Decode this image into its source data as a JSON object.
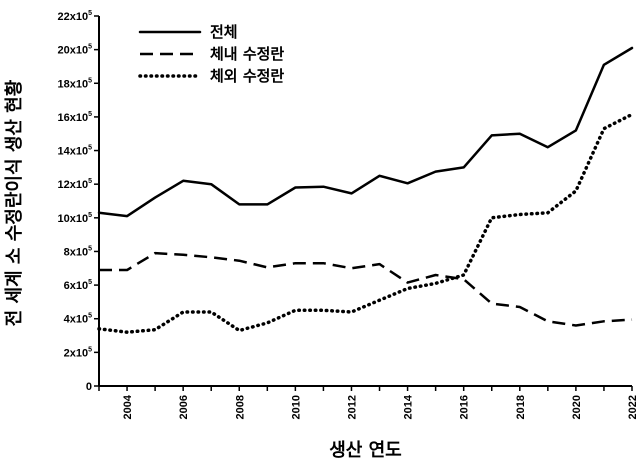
{
  "chart_data": {
    "type": "line",
    "xlabel": "생산 연도",
    "ylabel": "전 세계 소 수정란이식 생산 현황",
    "ylim": [
      0,
      2200000
    ],
    "yticks": [
      {
        "value": 0,
        "base": "0",
        "exp": ""
      },
      {
        "value": 200000,
        "base": "2x10",
        "exp": "5"
      },
      {
        "value": 400000,
        "base": "4x10",
        "exp": "5"
      },
      {
        "value": 600000,
        "base": "6x10",
        "exp": "5"
      },
      {
        "value": 800000,
        "base": "8x10",
        "exp": "5"
      },
      {
        "value": 1000000,
        "base": "10x10",
        "exp": "5"
      },
      {
        "value": 1200000,
        "base": "12x10",
        "exp": "5"
      },
      {
        "value": 1400000,
        "base": "14x10",
        "exp": "5"
      },
      {
        "value": 1600000,
        "base": "16x10",
        "exp": "5"
      },
      {
        "value": 1800000,
        "base": "18x10",
        "exp": "5"
      },
      {
        "value": 2000000,
        "base": "20x10",
        "exp": "5"
      },
      {
        "value": 2200000,
        "base": "22x10",
        "exp": "5"
      }
    ],
    "xticks": [
      "2004",
      "2006",
      "2008",
      "2010",
      "2012",
      "2014",
      "2016",
      "2018",
      "2020",
      "2022"
    ],
    "x": [
      2003,
      2004,
      2005,
      2006,
      2007,
      2008,
      2009,
      2010,
      2011,
      2012,
      2013,
      2014,
      2015,
      2016,
      2017,
      2018,
      2019,
      2020,
      2021,
      2022
    ],
    "series": [
      {
        "name": "전체",
        "style": "solid",
        "values": [
          1030000,
          1010000,
          1120000,
          1220000,
          1200000,
          1080000,
          1080000,
          1180000,
          1185000,
          1145000,
          1250000,
          1205000,
          1275000,
          1300000,
          1490000,
          1500000,
          1420000,
          1520000,
          1910000,
          2010000
        ]
      },
      {
        "name": "체내 수정란",
        "style": "dashed",
        "values": [
          690000,
          690000,
          790000,
          780000,
          765000,
          745000,
          705000,
          730000,
          730000,
          700000,
          725000,
          615000,
          660000,
          635000,
          490000,
          470000,
          385000,
          360000,
          385000,
          395000
        ]
      },
      {
        "name": "체외 수정란",
        "style": "dotted",
        "values": [
          340000,
          320000,
          335000,
          440000,
          440000,
          330000,
          375000,
          450000,
          450000,
          440000,
          510000,
          580000,
          610000,
          660000,
          1000000,
          1020000,
          1030000,
          1160000,
          1530000,
          1615000
        ]
      }
    ],
    "legend_position": "top-left",
    "grid": false
  }
}
